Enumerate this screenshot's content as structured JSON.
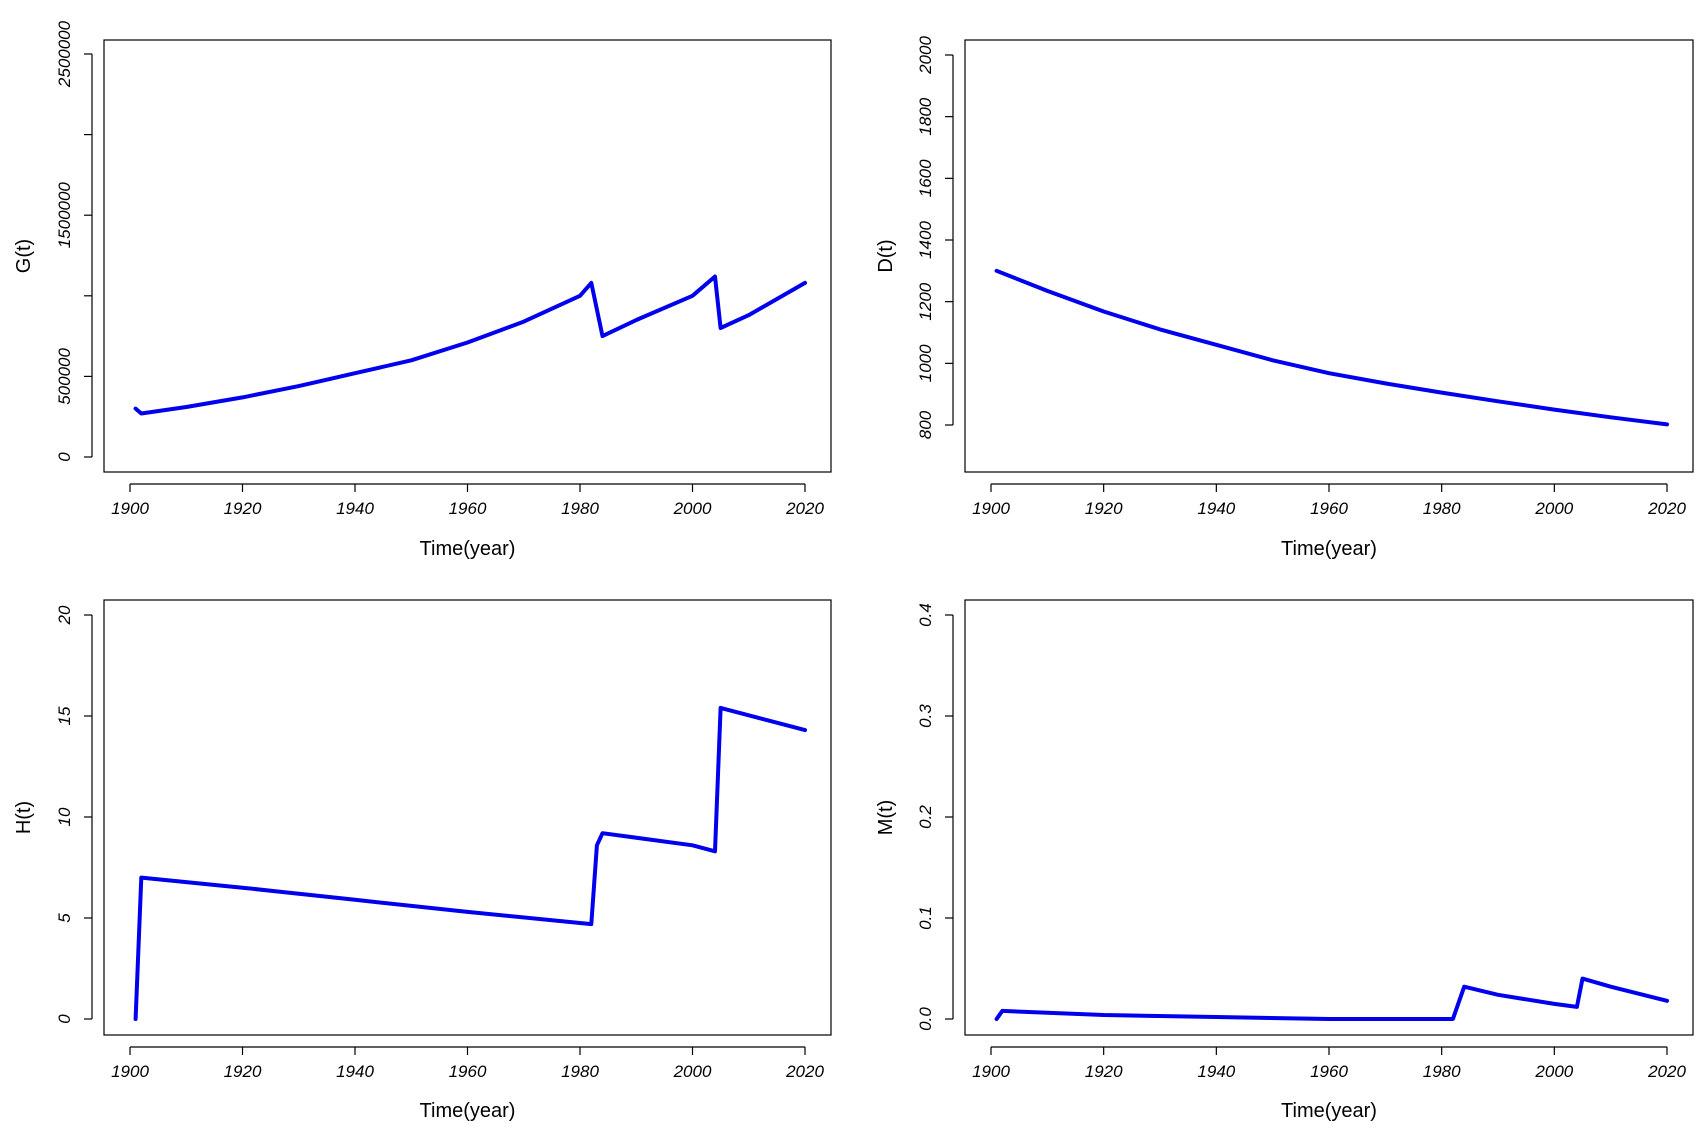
{
  "chart_data": [
    {
      "type": "line",
      "title": "",
      "xlabel": "Time(year)",
      "ylabel": "G(t)",
      "xlim": [
        1900,
        2020
      ],
      "ylim": [
        0,
        2500000
      ],
      "x_ticks": [
        1900,
        1920,
        1940,
        1960,
        1980,
        2000,
        2020
      ],
      "y_ticks": [
        0,
        500000,
        1500000,
        2500000
      ],
      "y_tick_labels": [
        "0",
        "500000",
        "1500000",
        "2500000"
      ],
      "grid": false,
      "color": "#0000ee",
      "series": [
        {
          "name": "G(t)",
          "x": [
            1901,
            1902,
            1910,
            1920,
            1930,
            1940,
            1950,
            1960,
            1970,
            1980,
            1982,
            1984,
            1990,
            2000,
            2004,
            2005,
            2010,
            2020
          ],
          "values": [
            300000,
            270000,
            310000,
            370000,
            440000,
            520000,
            600000,
            710000,
            840000,
            1000000,
            1080000,
            750000,
            850000,
            1000000,
            1120000,
            800000,
            880000,
            1080000
          ]
        }
      ]
    },
    {
      "type": "line",
      "title": "",
      "xlabel": "Time(year)",
      "ylabel": "D(t)",
      "xlim": [
        1900,
        2020
      ],
      "ylim": [
        800,
        2000
      ],
      "x_ticks": [
        1900,
        1920,
        1940,
        1960,
        1980,
        2000,
        2020
      ],
      "y_ticks": [
        800,
        1000,
        1200,
        1400,
        1600,
        1800,
        2000
      ],
      "y_tick_labels": [
        "800",
        "1000",
        "1200",
        "1400",
        "1600",
        "1800",
        "2000"
      ],
      "grid": false,
      "color": "#0000ee",
      "series": [
        {
          "name": "D(t)",
          "x": [
            1901,
            1910,
            1920,
            1930,
            1940,
            1950,
            1960,
            1970,
            1980,
            1990,
            2000,
            2010,
            2020
          ],
          "values": [
            1300,
            1235,
            1168,
            1110,
            1060,
            1010,
            968,
            935,
            905,
            877,
            850,
            825,
            802
          ]
        }
      ]
    },
    {
      "type": "line",
      "title": "",
      "xlabel": "Time(year)",
      "ylabel": "H(t)",
      "xlim": [
        1900,
        2020
      ],
      "ylim": [
        0,
        20
      ],
      "x_ticks": [
        1900,
        1920,
        1940,
        1960,
        1980,
        2000,
        2020
      ],
      "y_ticks": [
        0,
        5,
        10,
        15,
        20
      ],
      "y_tick_labels": [
        "0",
        "5",
        "10",
        "15",
        "20"
      ],
      "grid": false,
      "color": "#0000ee",
      "series": [
        {
          "name": "H(t)",
          "x": [
            1901,
            1902,
            1920,
            1940,
            1960,
            1982,
            1983,
            1984,
            2000,
            2004,
            2005,
            2020
          ],
          "values": [
            0,
            7.0,
            6.5,
            5.9,
            5.3,
            4.7,
            8.6,
            9.2,
            8.6,
            8.3,
            15.4,
            14.3
          ]
        }
      ]
    },
    {
      "type": "line",
      "title": "",
      "xlabel": "Time(year)",
      "ylabel": "M(t)",
      "xlim": [
        1900,
        2020
      ],
      "ylim": [
        0,
        0.4
      ],
      "x_ticks": [
        1900,
        1920,
        1940,
        1960,
        1980,
        2000,
        2020
      ],
      "y_ticks": [
        0,
        0.1,
        0.2,
        0.3,
        0.4
      ],
      "y_tick_labels": [
        "0.0",
        "0.1",
        "0.2",
        "0.3",
        "0.4"
      ],
      "grid": false,
      "color": "#0000ee",
      "series": [
        {
          "name": "M(t)",
          "x": [
            1901,
            1902,
            1920,
            1940,
            1960,
            1982,
            1984,
            1990,
            2000,
            2004,
            2005,
            2010,
            2020
          ],
          "values": [
            0.0,
            0.008,
            0.004,
            0.002,
            0.0,
            0.0,
            0.032,
            0.024,
            0.015,
            0.012,
            0.04,
            0.032,
            0.018
          ]
        }
      ]
    }
  ]
}
